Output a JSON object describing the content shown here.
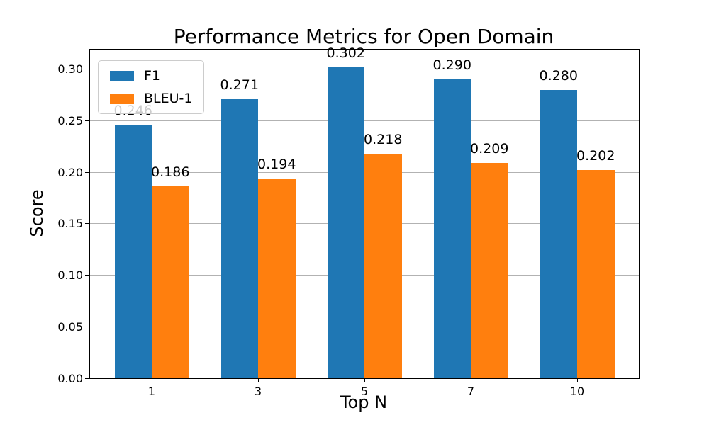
{
  "chart_data": {
    "type": "bar",
    "title": "Performance Metrics for Open Domain",
    "xlabel": "Top N",
    "ylabel": "Score",
    "categories": [
      "1",
      "3",
      "5",
      "7",
      "10"
    ],
    "series": [
      {
        "name": "F1",
        "color": "#1f77b4",
        "values": [
          0.246,
          0.271,
          0.302,
          0.29,
          0.28
        ],
        "labels": [
          "0.246",
          "0.271",
          "0.302",
          "0.290",
          "0.280"
        ]
      },
      {
        "name": "BLEU-1",
        "color": "#ff7f0e",
        "values": [
          0.186,
          0.194,
          0.218,
          0.209,
          0.202
        ],
        "labels": [
          "0.186",
          "0.194",
          "0.218",
          "0.209",
          "0.202"
        ]
      }
    ],
    "yticks": [
      "0.00",
      "0.05",
      "0.10",
      "0.15",
      "0.20",
      "0.25",
      "0.30"
    ],
    "ylim": [
      0,
      0.319
    ],
    "grid": true,
    "grid_color": "#b2b2b2",
    "legend_position": "upper left"
  }
}
